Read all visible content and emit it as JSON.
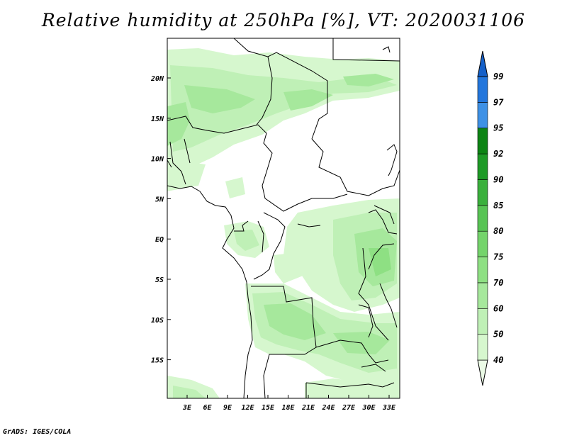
{
  "title": "Relative humidity at 250hPa [%], VT: 2020031106",
  "credit": "GrADS: IGES/COLA",
  "map": {
    "lat_labels": [
      "20N",
      "15N",
      "10N",
      "5N",
      "EQ",
      "5S",
      "10S",
      "15S"
    ],
    "lon_labels": [
      "3E",
      "6E",
      "9E",
      "12E",
      "15E",
      "18E",
      "21E",
      "24E",
      "27E",
      "30E",
      "33E"
    ]
  },
  "colorbar": {
    "levels": [
      "40",
      "50",
      "60",
      "70",
      "75",
      "80",
      "85",
      "90",
      "92",
      "95",
      "97",
      "99"
    ],
    "colors": [
      "#ebfbe6",
      "#d6f7ce",
      "#bff0b6",
      "#a6e89c",
      "#8ee083",
      "#74d46b",
      "#58c454",
      "#3ab03c",
      "#1e9a26",
      "#0d8414",
      "#3e91e6",
      "#2376dc",
      "#1560c8"
    ]
  }
}
